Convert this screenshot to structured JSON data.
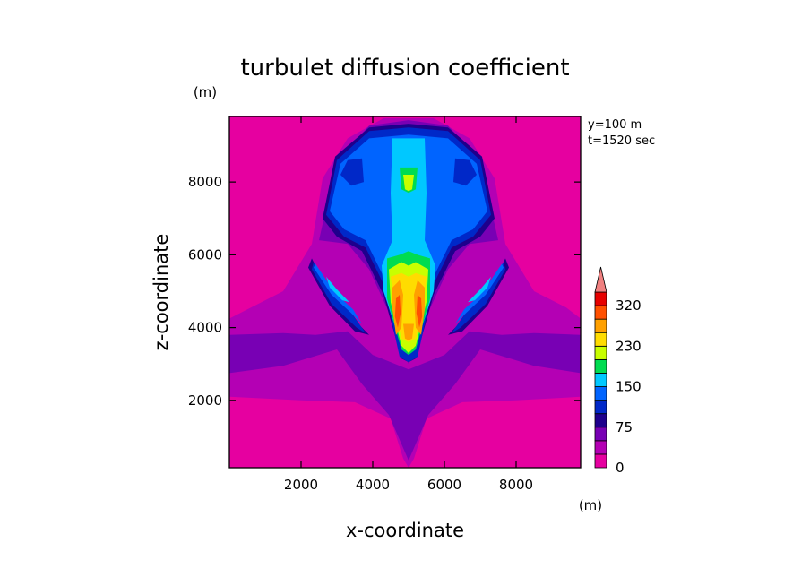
{
  "chart_data": {
    "type": "heatmap",
    "title": "turbulet diffusion coefficient",
    "xlabel": "x-coordinate",
    "ylabel": "z-coordinate",
    "x_unit": "(m)",
    "y_unit": "(m)",
    "annotations": [
      "y=100 m",
      "t=1520 sec"
    ],
    "xlim": [
      0,
      9800
    ],
    "ylim": [
      150,
      9800
    ],
    "x_ticks": [
      2000,
      4000,
      6000,
      8000
    ],
    "y_ticks": [
      2000,
      4000,
      6000,
      8000
    ],
    "x_tick_labels": [
      "2000",
      "4000",
      "6000",
      "8000"
    ],
    "y_tick_labels": [
      "2000",
      "4000",
      "6000",
      "8000"
    ],
    "grid": false,
    "colorbar": {
      "label_values": [
        0,
        75,
        150,
        230,
        320
      ],
      "tick_labels": [
        "0",
        "75",
        "150",
        "230",
        "320"
      ],
      "extend": "max",
      "levels": [
        0,
        40,
        60,
        75,
        100,
        130,
        150,
        180,
        200,
        230,
        260,
        300,
        320
      ],
      "colors": [
        "#e600a0",
        "#b400b4",
        "#7800b4",
        "#1e008c",
        "#0028c8",
        "#0064ff",
        "#00c8ff",
        "#00dc50",
        "#c8ff00",
        "#ffdc00",
        "#ffa000",
        "#ff5000",
        "#e60000"
      ],
      "extend_color": "#f08080"
    },
    "colors": {
      "low": "#e600a0",
      "background": "#ffffff",
      "frame": "#000000"
    },
    "field_regions": [
      {
        "level": 1,
        "points": [
          [
            0,
            4250
          ],
          [
            600,
            4550
          ],
          [
            1500,
            5000
          ],
          [
            2300,
            6300
          ],
          [
            2600,
            8100
          ],
          [
            3300,
            9200
          ],
          [
            4300,
            9750
          ],
          [
            5700,
            9750
          ],
          [
            6700,
            9200
          ],
          [
            7400,
            8100
          ],
          [
            7700,
            6300
          ],
          [
            8500,
            5000
          ],
          [
            9400,
            4550
          ],
          [
            9800,
            4250
          ],
          [
            9800,
            2100
          ],
          [
            8000,
            2000
          ],
          [
            6500,
            1950
          ],
          [
            5500,
            1500
          ],
          [
            5150,
            400
          ],
          [
            5000,
            150
          ],
          [
            4850,
            400
          ],
          [
            4500,
            1500
          ],
          [
            3500,
            1950
          ],
          [
            2000,
            2000
          ],
          [
            0,
            2100
          ]
        ]
      },
      {
        "level": 2,
        "points": [
          [
            0,
            2750
          ],
          [
            1500,
            2950
          ],
          [
            3000,
            3400
          ],
          [
            3700,
            2450
          ],
          [
            4450,
            1600
          ],
          [
            5000,
            350
          ],
          [
            5550,
            1600
          ],
          [
            6300,
            2450
          ],
          [
            7000,
            3400
          ],
          [
            8500,
            2950
          ],
          [
            9800,
            2750
          ],
          [
            9800,
            3800
          ],
          [
            8500,
            3850
          ],
          [
            7600,
            3800
          ],
          [
            6700,
            3900
          ],
          [
            6000,
            3250
          ],
          [
            5000,
            2850
          ],
          [
            4000,
            3250
          ],
          [
            3300,
            3900
          ],
          [
            2400,
            3800
          ],
          [
            1500,
            3850
          ],
          [
            0,
            3800
          ]
        ]
      },
      {
        "level": 2,
        "points": [
          [
            2500,
            6400
          ],
          [
            3000,
            8600
          ],
          [
            3900,
            9550
          ],
          [
            5000,
            9700
          ],
          [
            6100,
            9550
          ],
          [
            7000,
            8600
          ],
          [
            7500,
            6400
          ],
          [
            6700,
            6300
          ],
          [
            6100,
            5600
          ],
          [
            5400,
            4100
          ],
          [
            5000,
            3000
          ],
          [
            4600,
            4100
          ],
          [
            3900,
            5600
          ],
          [
            3300,
            6300
          ]
        ]
      },
      {
        "level": 3,
        "points": [
          [
            2300,
            5900
          ],
          [
            2800,
            4900
          ],
          [
            3400,
            4300
          ],
          [
            3900,
            3800
          ],
          [
            3500,
            3900
          ],
          [
            2800,
            4600
          ],
          [
            2200,
            5650
          ]
        ]
      },
      {
        "level": 3,
        "points": [
          [
            7700,
            5900
          ],
          [
            7200,
            4900
          ],
          [
            6600,
            4300
          ],
          [
            6100,
            3800
          ],
          [
            6500,
            3900
          ],
          [
            7200,
            4600
          ],
          [
            7800,
            5650
          ]
        ]
      },
      {
        "level": 3,
        "points": [
          [
            2600,
            7000
          ],
          [
            2950,
            8700
          ],
          [
            3900,
            9500
          ],
          [
            5000,
            9600
          ],
          [
            6100,
            9500
          ],
          [
            7050,
            8700
          ],
          [
            7400,
            7000
          ],
          [
            7000,
            6500
          ],
          [
            6300,
            6100
          ],
          [
            5700,
            4900
          ],
          [
            5200,
            3150
          ],
          [
            5000,
            3050
          ],
          [
            4800,
            3150
          ],
          [
            4300,
            4900
          ],
          [
            3700,
            6100
          ],
          [
            3000,
            6500
          ]
        ]
      },
      {
        "level": 4,
        "points": [
          [
            2700,
            7100
          ],
          [
            3000,
            8600
          ],
          [
            3900,
            9400
          ],
          [
            5000,
            9500
          ],
          [
            6100,
            9400
          ],
          [
            7000,
            8600
          ],
          [
            7300,
            7100
          ],
          [
            6800,
            6500
          ],
          [
            6200,
            6200
          ],
          [
            5700,
            5200
          ],
          [
            5250,
            3200
          ],
          [
            5000,
            3050
          ],
          [
            4750,
            3200
          ],
          [
            4300,
            5200
          ],
          [
            3800,
            6200
          ],
          [
            3200,
            6500
          ]
        ]
      },
      {
        "level": 4,
        "points": [
          [
            2350,
            5800
          ],
          [
            2900,
            4900
          ],
          [
            3450,
            4350
          ],
          [
            3800,
            3850
          ],
          [
            3550,
            4000
          ],
          [
            2850,
            4650
          ],
          [
            2300,
            5600
          ]
        ]
      },
      {
        "level": 4,
        "points": [
          [
            7650,
            5800
          ],
          [
            7100,
            4900
          ],
          [
            6550,
            4350
          ],
          [
            6200,
            3850
          ],
          [
            6450,
            4000
          ],
          [
            7150,
            4650
          ],
          [
            7700,
            5600
          ]
        ]
      },
      {
        "level": 5,
        "points": [
          [
            2400,
            5750
          ],
          [
            2950,
            4950
          ],
          [
            3450,
            4500
          ],
          [
            3700,
            4100
          ],
          [
            3400,
            4400
          ],
          [
            2850,
            4900
          ],
          [
            2350,
            5650
          ]
        ]
      },
      {
        "level": 5,
        "points": [
          [
            7600,
            5750
          ],
          [
            7050,
            4950
          ],
          [
            6550,
            4500
          ],
          [
            6300,
            4100
          ],
          [
            6600,
            4400
          ],
          [
            7150,
            4900
          ],
          [
            7650,
            5650
          ]
        ]
      },
      {
        "level": 5,
        "points": [
          [
            2800,
            7200
          ],
          [
            3100,
            8500
          ],
          [
            3900,
            9200
          ],
          [
            5000,
            9300
          ],
          [
            6100,
            9200
          ],
          [
            6900,
            8500
          ],
          [
            7200,
            7200
          ],
          [
            6800,
            6700
          ],
          [
            6200,
            6400
          ],
          [
            5650,
            5300
          ],
          [
            5200,
            3400
          ],
          [
            5000,
            3250
          ],
          [
            4800,
            3400
          ],
          [
            4350,
            5300
          ],
          [
            3800,
            6400
          ],
          [
            3200,
            6700
          ]
        ]
      },
      {
        "level": 4,
        "points": [
          [
            3100,
            8200
          ],
          [
            3300,
            8600
          ],
          [
            3700,
            8650
          ],
          [
            3750,
            8000
          ],
          [
            3400,
            7900
          ]
        ]
      },
      {
        "level": 4,
        "points": [
          [
            6900,
            8200
          ],
          [
            6700,
            8600
          ],
          [
            6300,
            8650
          ],
          [
            6250,
            8000
          ],
          [
            6600,
            7900
          ]
        ]
      },
      {
        "level": 6,
        "points": [
          [
            4550,
            9200
          ],
          [
            5450,
            9200
          ],
          [
            5500,
            7700
          ],
          [
            5450,
            6400
          ],
          [
            5750,
            5700
          ],
          [
            5700,
            5000
          ],
          [
            5300,
            3800
          ],
          [
            5000,
            3400
          ],
          [
            4700,
            3800
          ],
          [
            4300,
            5000
          ],
          [
            4250,
            5700
          ],
          [
            4550,
            6400
          ],
          [
            4500,
            7700
          ]
        ]
      },
      {
        "level": 6,
        "points": [
          [
            2700,
            5400
          ],
          [
            3000,
            5050
          ],
          [
            3350,
            4700
          ],
          [
            3150,
            4750
          ],
          [
            2800,
            5100
          ]
        ]
      },
      {
        "level": 6,
        "points": [
          [
            7300,
            5400
          ],
          [
            7000,
            5050
          ],
          [
            6650,
            4700
          ],
          [
            6850,
            4750
          ],
          [
            7200,
            5100
          ]
        ]
      },
      {
        "level": 7,
        "points": [
          [
            4750,
            8400
          ],
          [
            5250,
            8400
          ],
          [
            5200,
            7800
          ],
          [
            5000,
            7700
          ],
          [
            4800,
            7800
          ]
        ]
      },
      {
        "level": 7,
        "points": [
          [
            4400,
            5900
          ],
          [
            4750,
            6000
          ],
          [
            5000,
            6100
          ],
          [
            5250,
            6000
          ],
          [
            5600,
            5900
          ],
          [
            5600,
            4800
          ],
          [
            5200,
            3400
          ],
          [
            5000,
            3250
          ],
          [
            4800,
            3400
          ],
          [
            4400,
            4800
          ]
        ]
      },
      {
        "level": 8,
        "points": [
          [
            4850,
            8200
          ],
          [
            5150,
            8200
          ],
          [
            5100,
            7800
          ],
          [
            5000,
            7750
          ],
          [
            4900,
            7800
          ]
        ]
      },
      {
        "level": 8,
        "points": [
          [
            4450,
            5600
          ],
          [
            4800,
            5800
          ],
          [
            5000,
            5700
          ],
          [
            5200,
            5800
          ],
          [
            5550,
            5600
          ],
          [
            5500,
            4700
          ],
          [
            5200,
            3500
          ],
          [
            5000,
            3300
          ],
          [
            4800,
            3500
          ],
          [
            4500,
            4700
          ]
        ]
      },
      {
        "level": 9,
        "points": [
          [
            4500,
            5400
          ],
          [
            4800,
            5500
          ],
          [
            5000,
            5400
          ],
          [
            5200,
            5500
          ],
          [
            5500,
            5400
          ],
          [
            5400,
            4600
          ],
          [
            5200,
            3700
          ],
          [
            5000,
            3600
          ],
          [
            4800,
            3700
          ],
          [
            4600,
            4600
          ]
        ]
      },
      {
        "level": 10,
        "points": [
          [
            4550,
            5100
          ],
          [
            4750,
            5300
          ],
          [
            4850,
            4900
          ],
          [
            4800,
            4000
          ],
          [
            4650,
            3800
          ],
          [
            4550,
            4500
          ]
        ]
      },
      {
        "level": 10,
        "points": [
          [
            5450,
            5100
          ],
          [
            5250,
            5300
          ],
          [
            5150,
            4900
          ],
          [
            5200,
            4000
          ],
          [
            5350,
            3800
          ],
          [
            5450,
            4500
          ]
        ]
      },
      {
        "level": 10,
        "points": [
          [
            4850,
            4100
          ],
          [
            5150,
            4100
          ],
          [
            5100,
            3700
          ],
          [
            5000,
            3650
          ],
          [
            4900,
            3700
          ]
        ]
      },
      {
        "level": 11,
        "points": [
          [
            4650,
            4800
          ],
          [
            4750,
            4900
          ],
          [
            4780,
            4400
          ],
          [
            4700,
            4000
          ],
          [
            4620,
            4300
          ]
        ]
      },
      {
        "level": 11,
        "points": [
          [
            5350,
            4800
          ],
          [
            5250,
            4900
          ],
          [
            5220,
            4400
          ],
          [
            5300,
            4000
          ],
          [
            5380,
            4300
          ]
        ]
      }
    ]
  }
}
